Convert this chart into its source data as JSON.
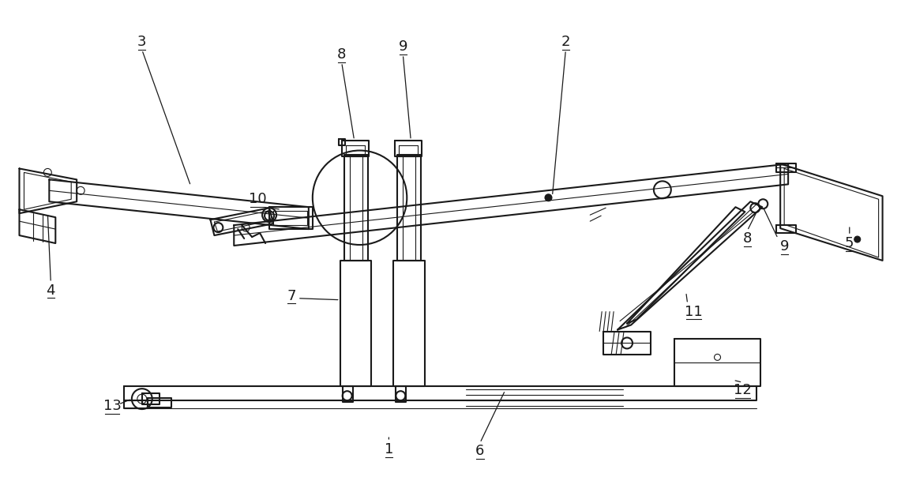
{
  "bg_color": "#ffffff",
  "line_color": "#1a1a1a",
  "line_width": 1.5,
  "thin_line": 0.8,
  "label_fontsize": 13
}
